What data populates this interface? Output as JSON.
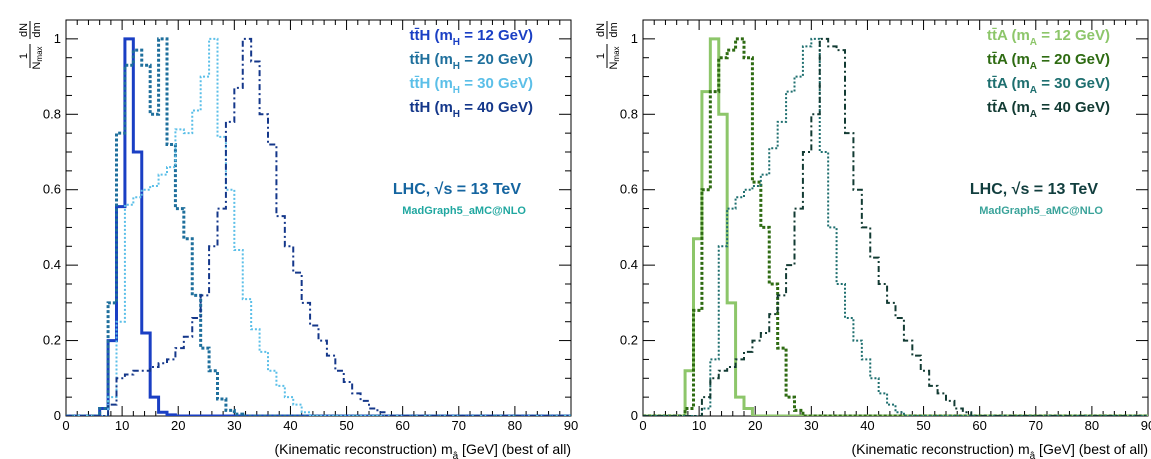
{
  "chart_data": [
    {
      "type": "histogram",
      "xlabel": "(Kinematic reconstruction) m",
      "xlabel_sub": "â",
      "xlabel_unit": "[GeV] (best of all)",
      "ylabel_frac_top": "1",
      "ylabel_frac_bottom": "N",
      "ylabel_frac_bottom_sub": "max",
      "ylabel_deriv_top": "dN",
      "ylabel_deriv_bottom": "dm",
      "xlim": [
        0,
        90
      ],
      "ylim": [
        0,
        1.05
      ],
      "xticks": [
        "0",
        "10",
        "20",
        "30",
        "40",
        "50",
        "60",
        "70",
        "80",
        "90"
      ],
      "yticks": [
        "0",
        "0.2",
        "0.4",
        "0.6",
        "0.8",
        "1"
      ],
      "annotation_main": "LHC,  √s = 13 TeV",
      "annotation_main_color": "#1565a0",
      "annotation_sub": "MadGraph5_aMC@NLO",
      "annotation_sub_color": "#20a7a0",
      "legend": [
        {
          "label_a": "tt̄H (m",
          "label_sub": "H",
          "label_b": " = 12 GeV)",
          "color": "#1a3fc4"
        },
        {
          "label_a": "tt̄H (m",
          "label_sub": "H",
          "label_b": " = 20 GeV)",
          "color": "#1e6f9c"
        },
        {
          "label_a": "tt̄H (m",
          "label_sub": "H",
          "label_b": " = 30 GeV)",
          "color": "#5bbfe8"
        },
        {
          "label_a": "tt̄H (m",
          "label_sub": "H",
          "label_b": " = 40 GeV)",
          "color": "#14378a"
        }
      ],
      "series": [
        {
          "name": "tt̄H (mH = 12 GeV)",
          "color": "#1a3fc4",
          "dash": "",
          "width": 3,
          "bin_width": 1.5,
          "x_start": 4.5,
          "values": [
            0.0,
            0.02,
            0.2,
            0.555,
            1.0,
            0.7,
            0.22,
            0.05,
            0.01,
            0.003,
            0.0
          ]
        },
        {
          "name": "tt̄H (mH = 20 GeV)",
          "color": "#1e6f9c",
          "dash": "3,2",
          "width": 3,
          "bin_width": 1.5,
          "x_start": 6,
          "values": [
            0.02,
            0.3,
            0.75,
            0.93,
            0.97,
            0.93,
            0.8,
            1.0,
            0.72,
            0.55,
            0.47,
            0.32,
            0.18,
            0.12,
            0.045,
            0.015,
            0.005,
            0.0
          ]
        },
        {
          "name": "tt̄H (mH = 30 GeV)",
          "color": "#5bbfe8",
          "dash": "2,2",
          "width": 2,
          "bin_width": 1.5,
          "x_start": 7.5,
          "values": [
            0.05,
            0.25,
            0.56,
            0.58,
            0.6,
            0.61,
            0.64,
            0.66,
            0.76,
            0.75,
            0.81,
            0.9,
            1.0,
            0.74,
            0.6,
            0.44,
            0.31,
            0.23,
            0.17,
            0.12,
            0.08,
            0.05,
            0.03,
            0.01,
            0.0
          ]
        },
        {
          "name": "tt̄H (mH = 40 GeV)",
          "color": "#14378a",
          "dash": "6,3,2,3",
          "width": 2,
          "bin_width": 1.5,
          "x_start": 7.5,
          "values": [
            0.03,
            0.1,
            0.11,
            0.12,
            0.12,
            0.13,
            0.14,
            0.15,
            0.18,
            0.21,
            0.26,
            0.32,
            0.45,
            0.55,
            0.78,
            0.87,
            1.0,
            0.94,
            0.8,
            0.72,
            0.53,
            0.45,
            0.38,
            0.3,
            0.24,
            0.2,
            0.16,
            0.12,
            0.09,
            0.06,
            0.04,
            0.02,
            0.01,
            0.0
          ]
        }
      ]
    },
    {
      "type": "histogram",
      "xlabel": "(Kinematic reconstruction) m",
      "xlabel_sub": "â",
      "xlabel_unit": "[GeV] (best of all)",
      "ylabel_frac_top": "1",
      "ylabel_frac_bottom": "N",
      "ylabel_frac_bottom_sub": "max",
      "ylabel_deriv_top": "dN",
      "ylabel_deriv_bottom": "dm",
      "xlim": [
        0,
        90
      ],
      "ylim": [
        0,
        1.05
      ],
      "xticks": [
        "0",
        "10",
        "20",
        "30",
        "40",
        "50",
        "60",
        "70",
        "80",
        "90"
      ],
      "yticks": [
        "0",
        "0.2",
        "0.4",
        "0.6",
        "0.8",
        "1"
      ],
      "annotation_main": "LHC,  √s = 13 TeV",
      "annotation_main_color": "#113e3e",
      "annotation_sub": "MadGraph5_aMC@NLO",
      "annotation_sub_color": "#3aa39a",
      "legend": [
        {
          "label_a": "tt̄A (m",
          "label_sub": "A",
          "label_b": " = 12 GeV)",
          "color": "#8dc66a"
        },
        {
          "label_a": "tt̄A (m",
          "label_sub": "A",
          "label_b": " = 20 GeV)",
          "color": "#2e6b12"
        },
        {
          "label_a": "tt̄A (m",
          "label_sub": "A",
          "label_b": " = 30 GeV)",
          "color": "#1e6f6f"
        },
        {
          "label_a": "tt̄A (m",
          "label_sub": "A",
          "label_b": " = 40 GeV)",
          "color": "#123b33"
        }
      ],
      "series": [
        {
          "name": "tt̄A (mA = 12 GeV)",
          "color": "#8dc66a",
          "dash": "",
          "width": 3,
          "bin_width": 1.5,
          "x_start": 6,
          "values": [
            0.0,
            0.12,
            0.47,
            0.86,
            1.0,
            0.8,
            0.3,
            0.05,
            0.02,
            0.0
          ]
        },
        {
          "name": "tt̄A (mA = 20 GeV)",
          "color": "#2e6b12",
          "dash": "3,2",
          "width": 3,
          "bin_width": 1.5,
          "x_start": 7.5,
          "values": [
            0.02,
            0.28,
            0.6,
            0.86,
            0.95,
            0.97,
            1.0,
            0.95,
            0.62,
            0.5,
            0.35,
            0.18,
            0.05,
            0.015,
            0.0
          ]
        },
        {
          "name": "tt̄A (mA = 30 GeV)",
          "color": "#1e6f6f",
          "dash": "2,2",
          "width": 2,
          "bin_width": 1.5,
          "x_start": 10.5,
          "values": [
            0.02,
            0.15,
            0.45,
            0.55,
            0.58,
            0.6,
            0.61,
            0.64,
            0.71,
            0.78,
            0.86,
            0.9,
            0.98,
            1.0,
            0.7,
            0.5,
            0.35,
            0.26,
            0.2,
            0.15,
            0.1,
            0.06,
            0.03,
            0.01,
            0.0
          ]
        },
        {
          "name": "tt̄A (mA = 40 GeV)",
          "color": "#123b33",
          "dash": "6,3,2,3",
          "width": 2,
          "bin_width": 1.5,
          "x_start": 10.5,
          "values": [
            0.05,
            0.1,
            0.12,
            0.13,
            0.15,
            0.17,
            0.2,
            0.22,
            0.27,
            0.32,
            0.4,
            0.55,
            0.7,
            0.8,
            1.0,
            0.98,
            0.97,
            0.75,
            0.6,
            0.5,
            0.42,
            0.35,
            0.3,
            0.26,
            0.2,
            0.16,
            0.12,
            0.08,
            0.06,
            0.04,
            0.02,
            0.01,
            0.0
          ]
        }
      ]
    }
  ]
}
